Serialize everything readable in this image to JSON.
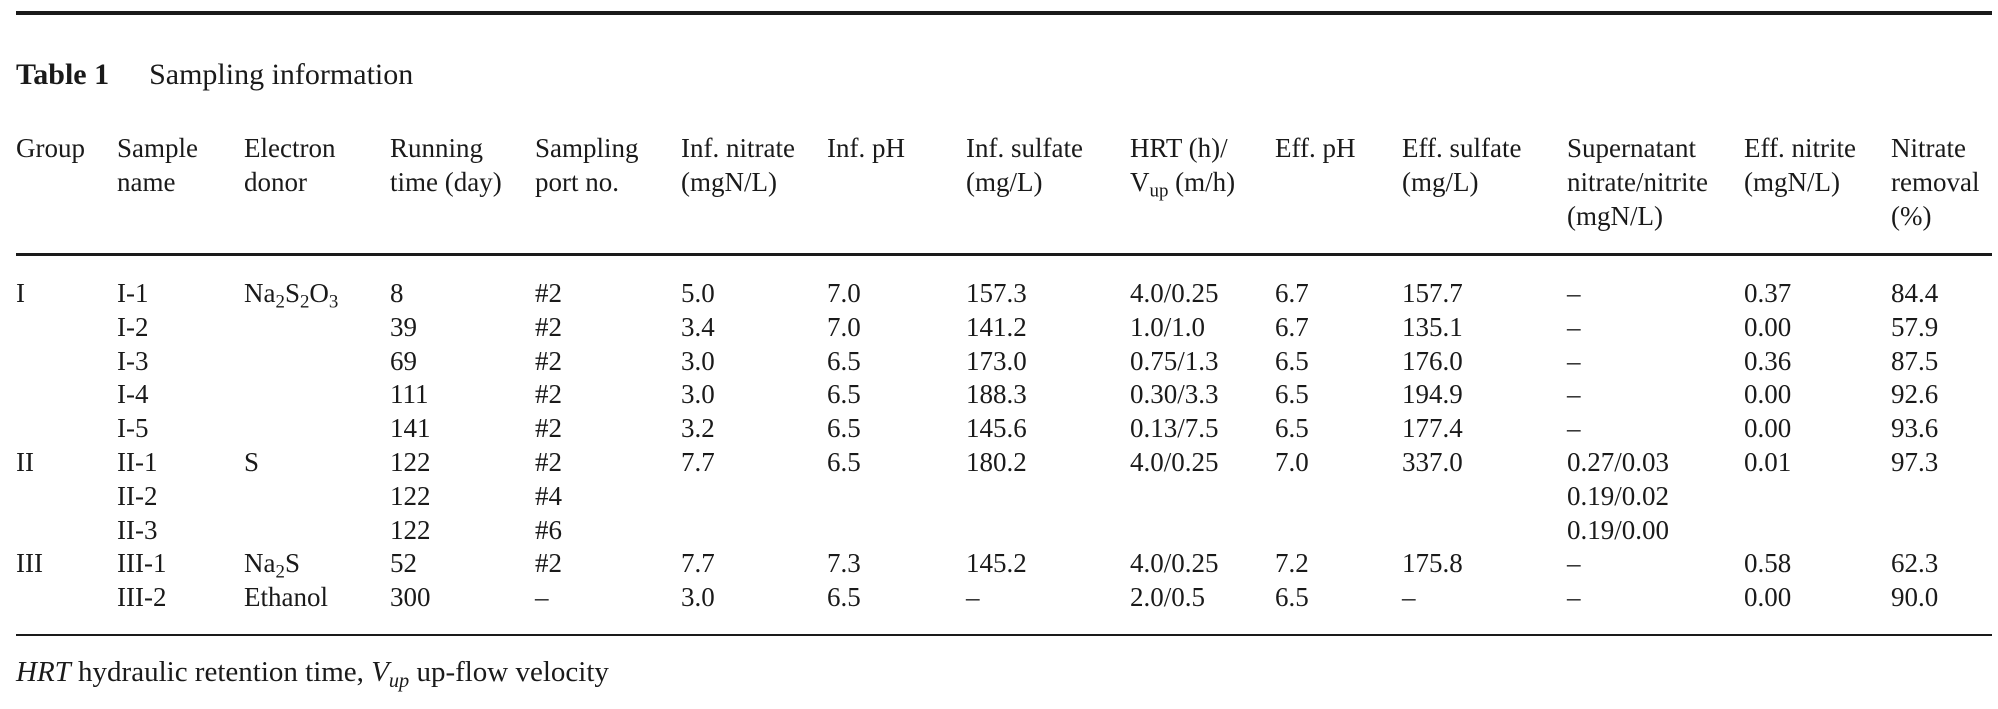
{
  "caption": {
    "label": "Table 1",
    "title": "Sampling information"
  },
  "table": {
    "headers": [
      "Group|Sample\nname",
      "Electron\ndonor",
      "Running\ntime (day)",
      "Sampling\nport no.",
      "Inf. nitrate\n(mgN/L)",
      "Inf. pH",
      "Inf. sulfate\n(mg/L)",
      "HRT (h)/\nV_up (m/h)",
      "Eff. pH",
      "Eff. sulfate\n(mg/L)",
      "Supernatant\nnitrate/nitrite\n(mgN/L)",
      "Eff. nitrite\n(mgN/L)",
      "Nitrate\nremoval\n(%)"
    ],
    "header_cells": [
      "Group",
      "Sample\nname",
      "Electron\ndonor",
      "Running\ntime (day)",
      "Sampling\nport no.",
      "Inf. nitrate\n(mgN/L)",
      "Inf. pH",
      "Inf. sulfate\n(mg/L)",
      "HRT (h)/\nV_up (m/h)",
      "Eff. pH",
      "Eff. sulfate\n(mg/L)",
      "Supernatant\nnitrate/nitrite\n(mgN/L)",
      "Eff. nitrite\n(mgN/L)",
      "Nitrate\nremoval\n(%)"
    ],
    "rows": [
      [
        "I",
        "I-1",
        "Na2S2O3",
        "8",
        "#2",
        "5.0",
        "7.0",
        "157.3",
        "4.0/0.25",
        "6.7",
        "157.7",
        "–",
        "0.37",
        "84.4"
      ],
      [
        "",
        "I-2",
        "",
        "39",
        "#2",
        "3.4",
        "7.0",
        "141.2",
        "1.0/1.0",
        "6.7",
        "135.1",
        "–",
        "0.00",
        "57.9"
      ],
      [
        "",
        "I-3",
        "",
        "69",
        "#2",
        "3.0",
        "6.5",
        "173.0",
        "0.75/1.3",
        "6.5",
        "176.0",
        "–",
        "0.36",
        "87.5"
      ],
      [
        "",
        "I-4",
        "",
        "111",
        "#2",
        "3.0",
        "6.5",
        "188.3",
        "0.30/3.3",
        "6.5",
        "194.9",
        "–",
        "0.00",
        "92.6"
      ],
      [
        "",
        "I-5",
        "",
        "141",
        "#2",
        "3.2",
        "6.5",
        "145.6",
        "0.13/7.5",
        "6.5",
        "177.4",
        "–",
        "0.00",
        "93.6"
      ],
      [
        "II",
        "II-1",
        "S",
        "122",
        "#2",
        "7.7",
        "6.5",
        "180.2",
        "4.0/0.25",
        "7.0",
        "337.0",
        "0.27/0.03",
        "0.01",
        "97.3"
      ],
      [
        "",
        "II-2",
        "",
        "122",
        "#4",
        "",
        "",
        "",
        "",
        "",
        "",
        "0.19/0.02",
        "",
        ""
      ],
      [
        "",
        "II-3",
        "",
        "122",
        "#6",
        "",
        "",
        "",
        "",
        "",
        "",
        "0.19/0.00",
        "",
        ""
      ],
      [
        "III",
        "III-1",
        "Na2S",
        "52",
        "#2",
        "7.7",
        "7.3",
        "145.2",
        "4.0/0.25",
        "7.2",
        "175.8",
        "–",
        "0.58",
        "62.3"
      ],
      [
        "",
        "III-2",
        "Ethanol",
        "300",
        "–",
        "3.0",
        "6.5",
        "–",
        "2.0/0.5",
        "6.5",
        "–",
        "–",
        "0.00",
        "90.0"
      ]
    ]
  },
  "footnote": {
    "hrt_abbr": "HRT",
    "hrt_text": " hydraulic retention time, ",
    "vup_abbr": "V",
    "vup_sub": "up",
    "vup_text": " up-flow velocity"
  }
}
